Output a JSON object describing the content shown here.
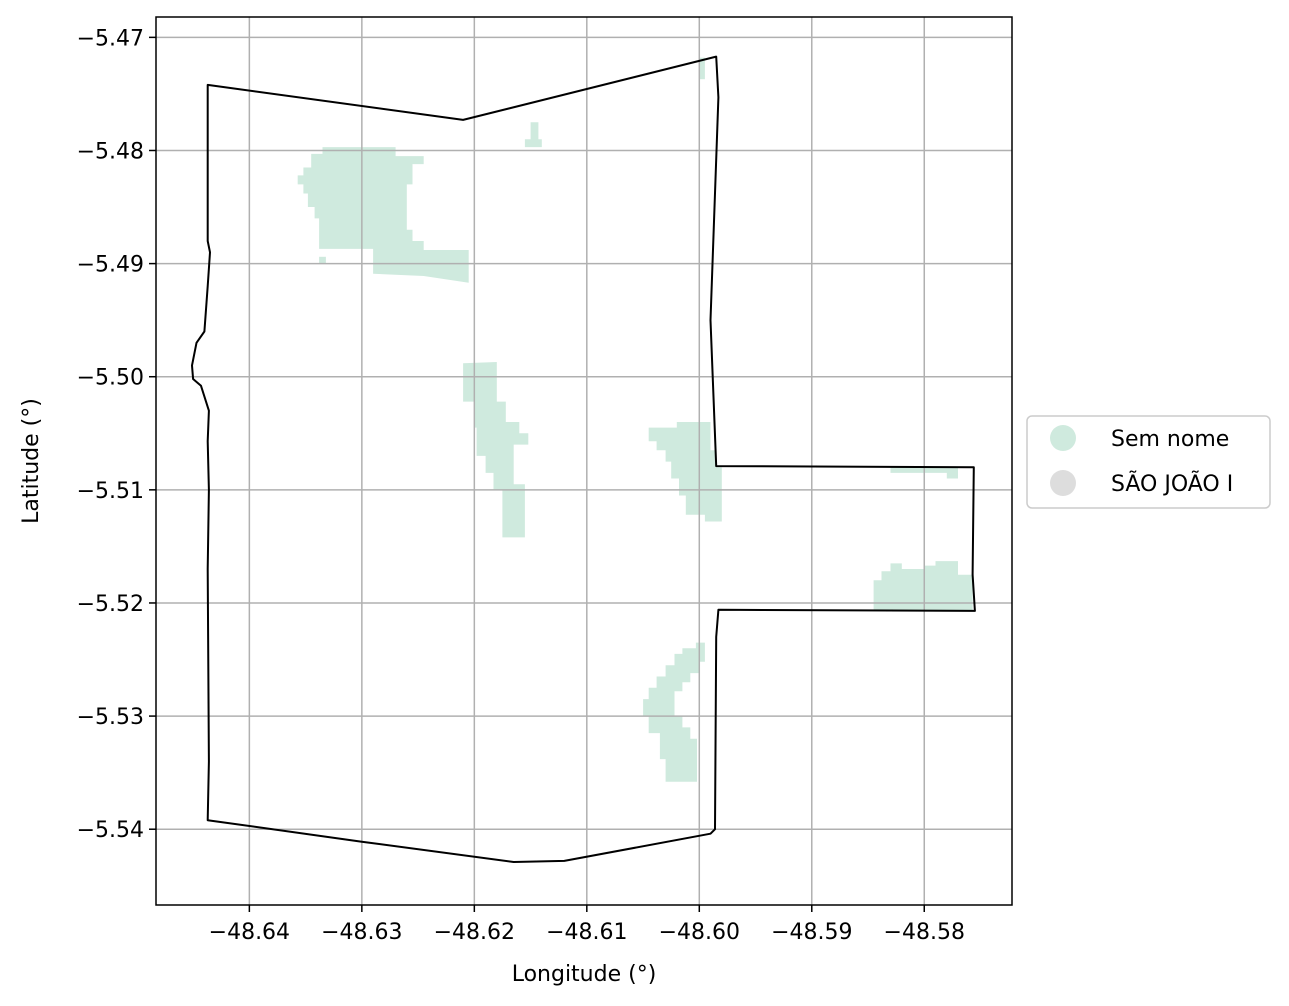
{
  "chart_data": {
    "type": "map",
    "xlabel": "Longitude (°)",
    "ylabel": "Latitude (°)",
    "xlim": [
      -48.6483,
      -48.5722
    ],
    "ylim": [
      -5.5467,
      -5.4682
    ],
    "grid": true,
    "x_ticks": [
      {
        "value": -48.64,
        "label": "−48.64"
      },
      {
        "value": -48.63,
        "label": "−48.63"
      },
      {
        "value": -48.62,
        "label": "−48.62"
      },
      {
        "value": -48.61,
        "label": "−48.61"
      },
      {
        "value": -48.6,
        "label": "−48.60"
      },
      {
        "value": -48.59,
        "label": "−48.59"
      },
      {
        "value": -48.58,
        "label": "−48.58"
      }
    ],
    "y_ticks": [
      {
        "value": -5.47,
        "label": "−5.47"
      },
      {
        "value": -5.48,
        "label": "−5.48"
      },
      {
        "value": -5.49,
        "label": "−5.49"
      },
      {
        "value": -5.5,
        "label": "−5.50"
      },
      {
        "value": -5.51,
        "label": "−5.51"
      },
      {
        "value": -5.52,
        "label": "−5.52"
      },
      {
        "value": -5.53,
        "label": "−5.53"
      },
      {
        "value": -5.54,
        "label": "−5.54"
      }
    ],
    "legend": {
      "placement": "center-right",
      "entries": [
        {
          "label": "Sem nome",
          "color": "#cfeade"
        },
        {
          "label": "SÃO JOÃO I",
          "color": "#dddddd"
        }
      ]
    },
    "boundary": {
      "stroke": "#000000",
      "coords": [
        [
          -48.6437,
          -5.4742
        ],
        [
          -48.621,
          -5.4773
        ],
        [
          -48.5985,
          -5.4717
        ],
        [
          -48.5983,
          -5.4753
        ],
        [
          -48.599,
          -5.495
        ],
        [
          -48.5985,
          -5.5079
        ],
        [
          -48.5756,
          -5.508
        ],
        [
          -48.5757,
          -5.5175
        ],
        [
          -48.5755,
          -5.5207
        ],
        [
          -48.5983,
          -5.5206
        ],
        [
          -48.5985,
          -5.523
        ],
        [
          -48.5986,
          -5.54
        ],
        [
          -48.599,
          -5.5404
        ],
        [
          -48.612,
          -5.5428
        ],
        [
          -48.6165,
          -5.5429
        ],
        [
          -48.63,
          -5.5411
        ],
        [
          -48.6437,
          -5.5392
        ],
        [
          -48.6436,
          -5.534
        ],
        [
          -48.6437,
          -5.517
        ],
        [
          -48.6436,
          -5.51
        ],
        [
          -48.6437,
          -5.5057
        ],
        [
          -48.6436,
          -5.503
        ],
        [
          -48.6443,
          -5.5008
        ],
        [
          -48.645,
          -5.5002
        ],
        [
          -48.6451,
          -5.499
        ],
        [
          -48.6447,
          -5.497
        ],
        [
          -48.644,
          -5.496
        ],
        [
          -48.6437,
          -5.492
        ],
        [
          -48.6435,
          -5.489
        ],
        [
          -48.6437,
          -5.488
        ],
        [
          -48.6437,
          -5.4742
        ]
      ]
    },
    "areas": [
      {
        "name": "Sem nome",
        "color": "#cfeade",
        "polygons": [
          [
            [
              -48.6335,
              -5.4797
            ],
            [
              -48.627,
              -5.4797
            ],
            [
              -48.627,
              -5.4805
            ],
            [
              -48.6245,
              -5.4805
            ],
            [
              -48.6245,
              -5.4812
            ],
            [
              -48.6255,
              -5.4812
            ],
            [
              -48.6255,
              -5.483
            ],
            [
              -48.626,
              -5.483
            ],
            [
              -48.626,
              -5.487
            ],
            [
              -48.6255,
              -5.487
            ],
            [
              -48.6255,
              -5.488
            ],
            [
              -48.6245,
              -5.488
            ],
            [
              -48.6245,
              -5.4888
            ],
            [
              -48.6205,
              -5.4888
            ],
            [
              -48.6205,
              -5.4917
            ],
            [
              -48.6245,
              -5.4911
            ],
            [
              -48.629,
              -5.4909
            ],
            [
              -48.629,
              -5.4887
            ],
            [
              -48.6338,
              -5.4887
            ],
            [
              -48.6338,
              -5.486
            ],
            [
              -48.6342,
              -5.486
            ],
            [
              -48.6342,
              -5.485
            ],
            [
              -48.6348,
              -5.485
            ],
            [
              -48.6348,
              -5.4838
            ],
            [
              -48.6352,
              -5.4838
            ],
            [
              -48.6352,
              -5.483
            ],
            [
              -48.6357,
              -5.483
            ],
            [
              -48.6357,
              -5.4822
            ],
            [
              -48.6352,
              -5.4822
            ],
            [
              -48.6352,
              -5.4815
            ],
            [
              -48.6345,
              -5.4815
            ],
            [
              -48.6345,
              -5.4803
            ],
            [
              -48.6335,
              -5.4803
            ]
          ],
          [
            [
              -48.6338,
              -5.4894
            ],
            [
              -48.6332,
              -5.4894
            ],
            [
              -48.6332,
              -5.49
            ],
            [
              -48.6338,
              -5.49
            ]
          ],
          [
            [
              -48.615,
              -5.4775
            ],
            [
              -48.6143,
              -5.4775
            ],
            [
              -48.6143,
              -5.479
            ],
            [
              -48.614,
              -5.479
            ],
            [
              -48.614,
              -5.4797
            ],
            [
              -48.6155,
              -5.4797
            ],
            [
              -48.6155,
              -5.479
            ],
            [
              -48.615,
              -5.479
            ]
          ],
          [
            [
              -48.621,
              -5.4988
            ],
            [
              -48.618,
              -5.4987
            ],
            [
              -48.618,
              -5.5022
            ],
            [
              -48.6172,
              -5.5022
            ],
            [
              -48.6172,
              -5.504
            ],
            [
              -48.616,
              -5.504
            ],
            [
              -48.616,
              -5.505
            ],
            [
              -48.6152,
              -5.505
            ],
            [
              -48.6152,
              -5.506
            ],
            [
              -48.6165,
              -5.506
            ],
            [
              -48.6165,
              -5.5095
            ],
            [
              -48.6155,
              -5.5095
            ],
            [
              -48.6155,
              -5.5142
            ],
            [
              -48.6175,
              -5.5142
            ],
            [
              -48.6175,
              -5.51
            ],
            [
              -48.6183,
              -5.51
            ],
            [
              -48.6183,
              -5.5085
            ],
            [
              -48.619,
              -5.5085
            ],
            [
              -48.619,
              -5.507
            ],
            [
              -48.6198,
              -5.507
            ],
            [
              -48.6198,
              -5.5045
            ],
            [
              -48.62,
              -5.5045
            ],
            [
              -48.62,
              -5.5022
            ],
            [
              -48.621,
              -5.5022
            ]
          ],
          [
            [
              -48.6045,
              -5.5045
            ],
            [
              -48.602,
              -5.5045
            ],
            [
              -48.602,
              -5.504
            ],
            [
              -48.599,
              -5.504
            ],
            [
              -48.599,
              -5.5065
            ],
            [
              -48.5985,
              -5.5065
            ],
            [
              -48.5985,
              -5.508
            ],
            [
              -48.598,
              -5.508
            ],
            [
              -48.598,
              -5.5128
            ],
            [
              -48.5995,
              -5.5128
            ],
            [
              -48.5995,
              -5.5122
            ],
            [
              -48.6012,
              -5.5122
            ],
            [
              -48.6012,
              -5.5105
            ],
            [
              -48.6018,
              -5.5105
            ],
            [
              -48.6018,
              -5.509
            ],
            [
              -48.6025,
              -5.509
            ],
            [
              -48.6025,
              -5.5075
            ],
            [
              -48.603,
              -5.5075
            ],
            [
              -48.603,
              -5.5065
            ],
            [
              -48.6038,
              -5.5065
            ],
            [
              -48.6038,
              -5.5057
            ],
            [
              -48.6045,
              -5.5057
            ]
          ],
          [
            [
              -48.6003,
              -5.5235
            ],
            [
              -48.5995,
              -5.5235
            ],
            [
              -48.5995,
              -5.5252
            ],
            [
              -48.6,
              -5.5252
            ],
            [
              -48.6,
              -5.5262
            ],
            [
              -48.6008,
              -5.5262
            ],
            [
              -48.6008,
              -5.527
            ],
            [
              -48.6015,
              -5.527
            ],
            [
              -48.6015,
              -5.5278
            ],
            [
              -48.6022,
              -5.5278
            ],
            [
              -48.6022,
              -5.53
            ],
            [
              -48.6015,
              -5.53
            ],
            [
              -48.6015,
              -5.531
            ],
            [
              -48.6008,
              -5.531
            ],
            [
              -48.6008,
              -5.532
            ],
            [
              -48.6002,
              -5.532
            ],
            [
              -48.6002,
              -5.5358
            ],
            [
              -48.603,
              -5.5358
            ],
            [
              -48.603,
              -5.5338
            ],
            [
              -48.6035,
              -5.5338
            ],
            [
              -48.6035,
              -5.5315
            ],
            [
              -48.6045,
              -5.5315
            ],
            [
              -48.6045,
              -5.53
            ],
            [
              -48.605,
              -5.53
            ],
            [
              -48.605,
              -5.5285
            ],
            [
              -48.6045,
              -5.5285
            ],
            [
              -48.6045,
              -5.5275
            ],
            [
              -48.6038,
              -5.5275
            ],
            [
              -48.6038,
              -5.5265
            ],
            [
              -48.603,
              -5.5265
            ],
            [
              -48.603,
              -5.5255
            ],
            [
              -48.6022,
              -5.5255
            ],
            [
              -48.6022,
              -5.5245
            ],
            [
              -48.6015,
              -5.5245
            ],
            [
              -48.6015,
              -5.524
            ],
            [
              -48.6003,
              -5.524
            ]
          ],
          [
            [
              -48.577,
              -5.5163
            ],
            [
              -48.579,
              -5.5163
            ],
            [
              -48.579,
              -5.5167
            ],
            [
              -48.58,
              -5.5167
            ],
            [
              -48.58,
              -5.517
            ],
            [
              -48.582,
              -5.517
            ],
            [
              -48.582,
              -5.5165
            ],
            [
              -48.583,
              -5.5165
            ],
            [
              -48.583,
              -5.5172
            ],
            [
              -48.5838,
              -5.5172
            ],
            [
              -48.5838,
              -5.518
            ],
            [
              -48.5845,
              -5.518
            ],
            [
              -48.5845,
              -5.5207
            ],
            [
              -48.5757,
              -5.5207
            ],
            [
              -48.5757,
              -5.5175
            ],
            [
              -48.577,
              -5.5175
            ]
          ],
          [
            [
              -48.583,
              -5.508
            ],
            [
              -48.577,
              -5.508
            ],
            [
              -48.577,
              -5.509
            ],
            [
              -48.578,
              -5.509
            ],
            [
              -48.578,
              -5.5085
            ],
            [
              -48.583,
              -5.5085
            ]
          ],
          [
            [
              -48.6,
              -5.4718
            ],
            [
              -48.5995,
              -5.4718
            ],
            [
              -48.5995,
              -5.4737
            ],
            [
              -48.6,
              -5.4737
            ]
          ]
        ]
      }
    ]
  }
}
